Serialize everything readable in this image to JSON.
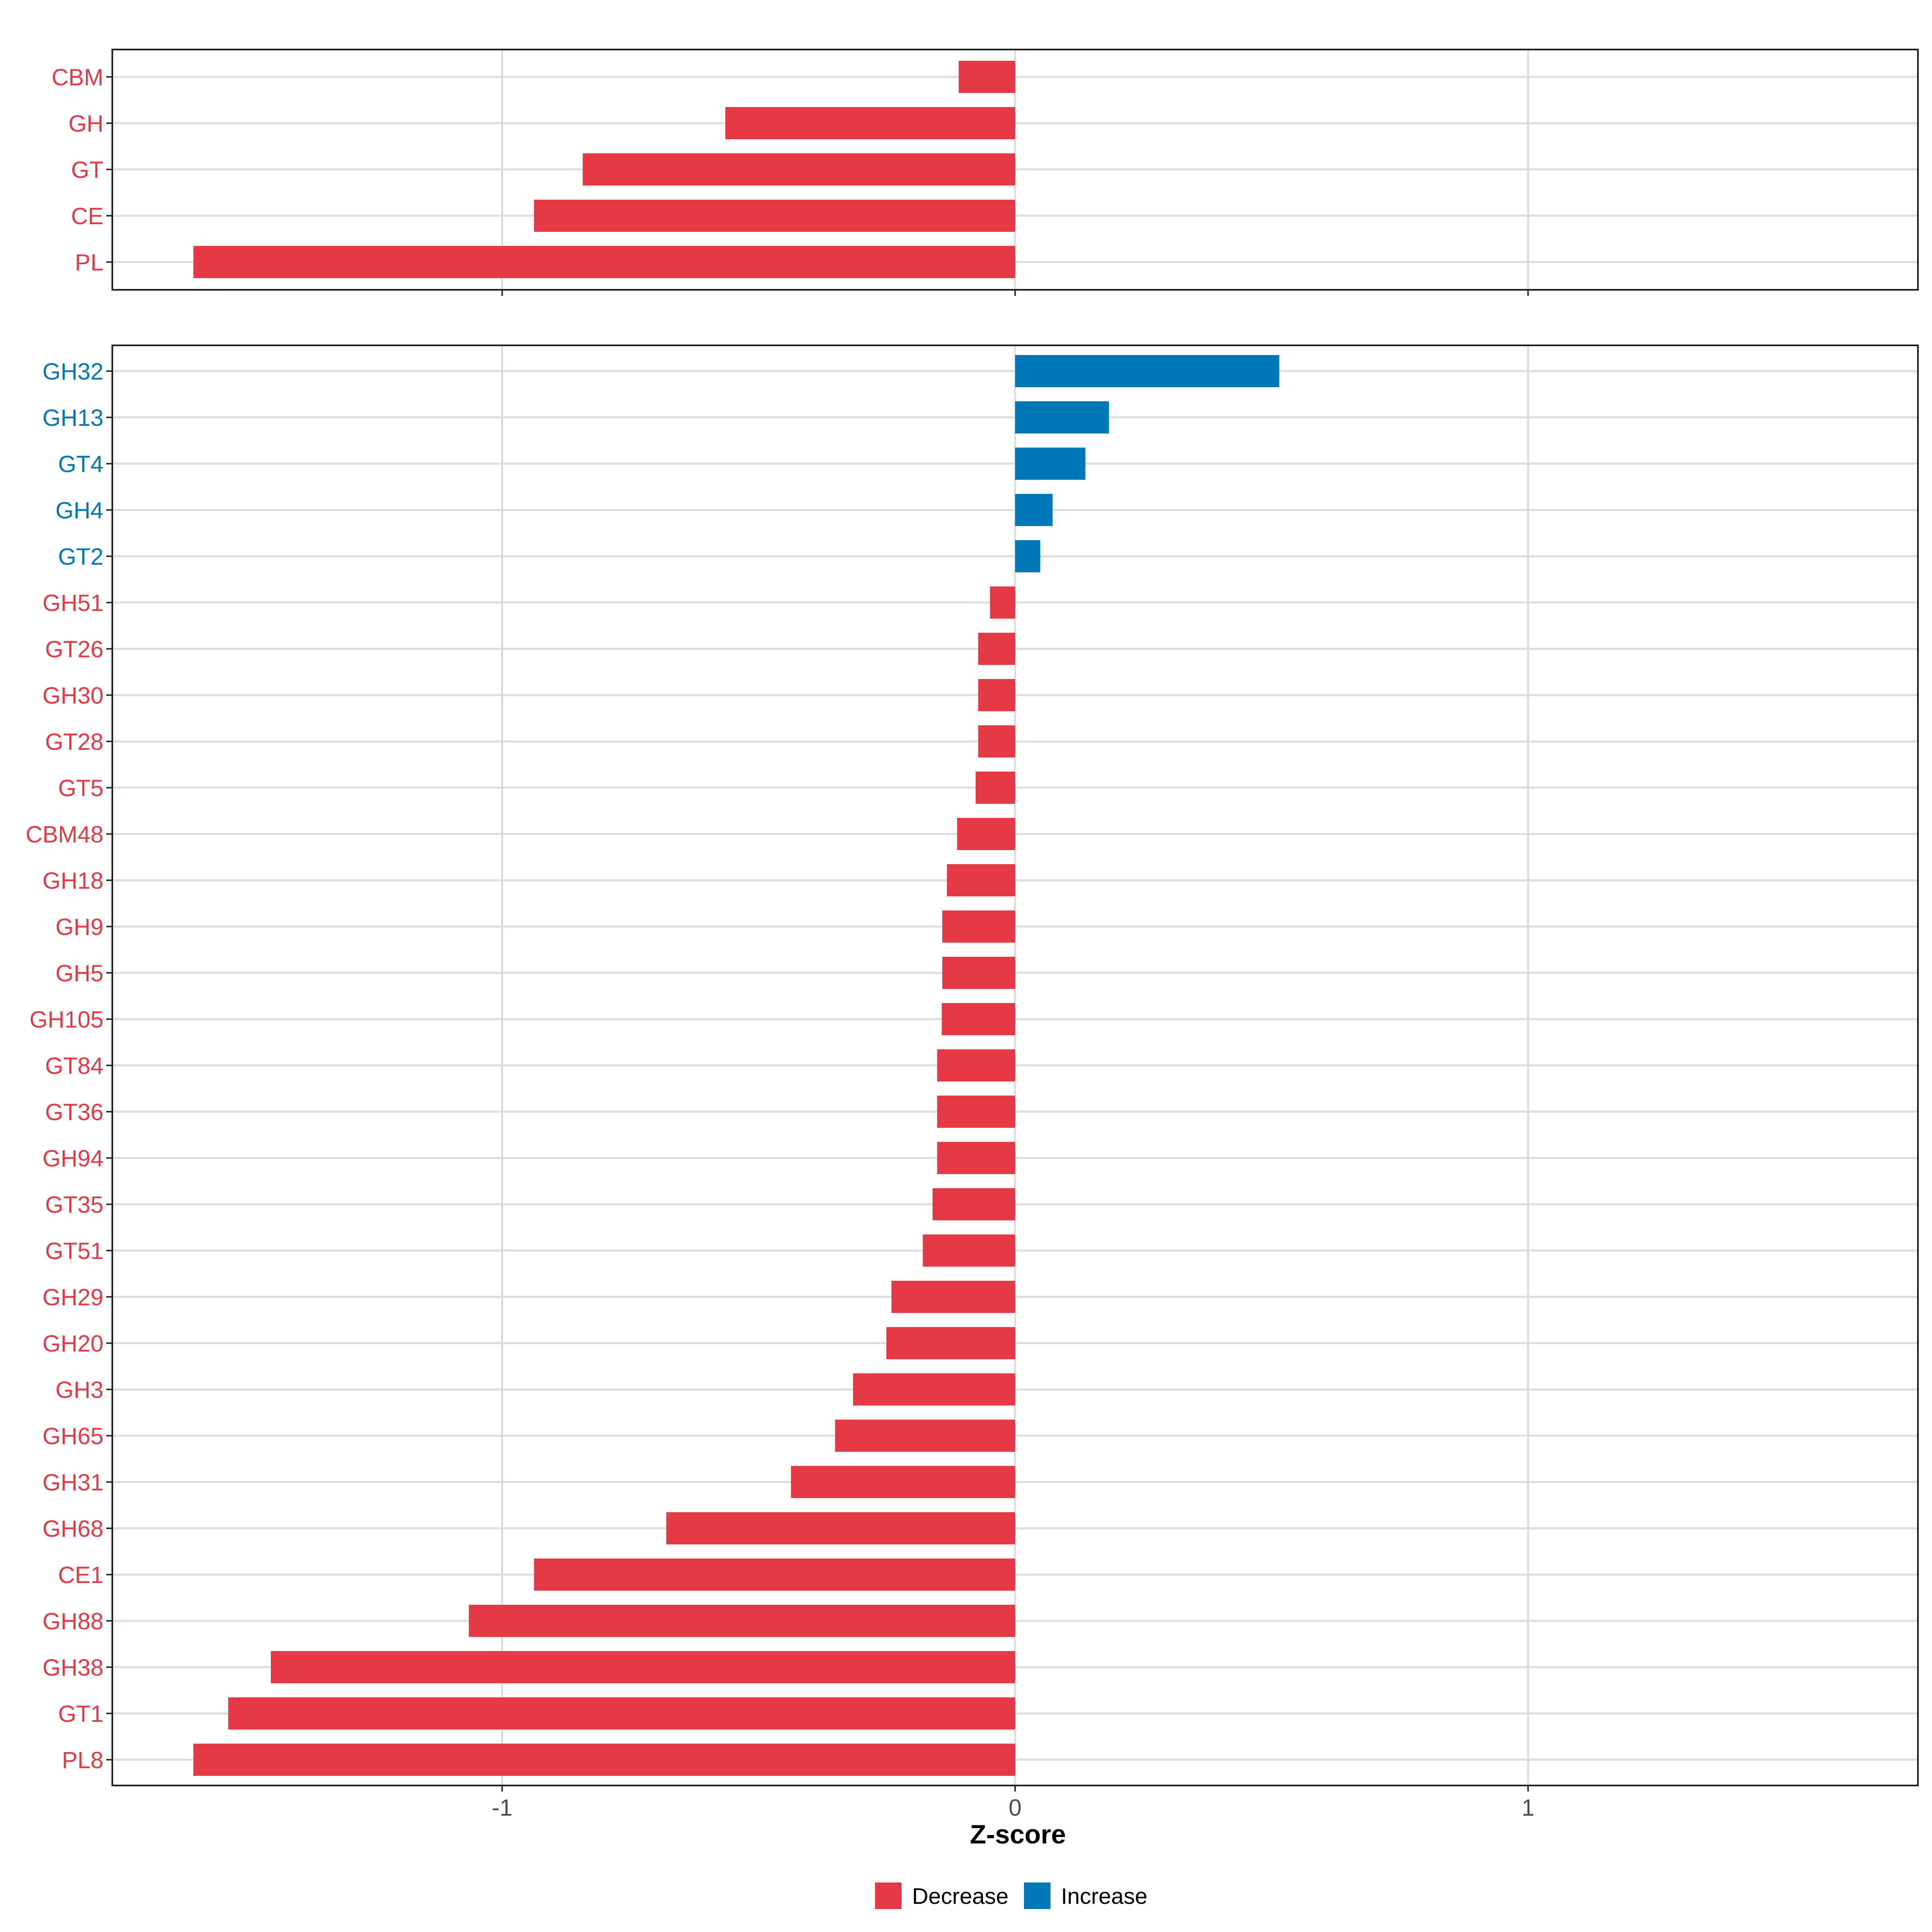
{
  "chart_data": [
    {
      "type": "bar",
      "orientation": "horizontal",
      "title": "",
      "xlabel": "",
      "ylabel": "",
      "xlim": [
        -1.76,
        1.76
      ],
      "xticks": [
        -1,
        0,
        1
      ],
      "xtick_labels": [
        "-1",
        "0",
        "1"
      ],
      "show_tick_labels": false,
      "grid": true,
      "categories": [
        "CBM",
        "GH",
        "GT",
        "CE",
        "PL"
      ],
      "values": [
        -0.11,
        -0.565,
        -0.843,
        -0.938,
        -1.602
      ],
      "direction": [
        "Decrease",
        "Decrease",
        "Decrease",
        "Decrease",
        "Decrease"
      ]
    },
    {
      "type": "bar",
      "orientation": "horizontal",
      "title": "",
      "xlabel": "Z-score",
      "ylabel": "",
      "xlim": [
        -1.76,
        1.76
      ],
      "xticks": [
        -1,
        0,
        1
      ],
      "xtick_labels": [
        "-1",
        "0",
        "1"
      ],
      "show_tick_labels": true,
      "grid": true,
      "categories": [
        "GH32",
        "GH13",
        "GT4",
        "GH4",
        "GT2",
        "GH51",
        "GT26",
        "GH30",
        "GT28",
        "GT5",
        "CBM48",
        "GH18",
        "GH9",
        "GH5",
        "GH105",
        "GT84",
        "GT36",
        "GH94",
        "GT35",
        "GT51",
        "GH29",
        "GH20",
        "GH3",
        "GH65",
        "GH31",
        "GH68",
        "CE1",
        "GH88",
        "GH38",
        "GT1",
        "PL8"
      ],
      "values": [
        0.515,
        0.183,
        0.137,
        0.073,
        0.049,
        -0.049,
        -0.072,
        -0.072,
        -0.072,
        -0.077,
        -0.113,
        -0.133,
        -0.142,
        -0.142,
        -0.143,
        -0.152,
        -0.152,
        -0.152,
        -0.161,
        -0.18,
        -0.241,
        -0.251,
        -0.316,
        -0.351,
        -0.437,
        -0.68,
        -0.938,
        -1.065,
        -1.451,
        -1.534,
        -1.602
      ],
      "direction": [
        "Increase",
        "Increase",
        "Increase",
        "Increase",
        "Increase",
        "Decrease",
        "Decrease",
        "Decrease",
        "Decrease",
        "Decrease",
        "Decrease",
        "Decrease",
        "Decrease",
        "Decrease",
        "Decrease",
        "Decrease",
        "Decrease",
        "Decrease",
        "Decrease",
        "Decrease",
        "Decrease",
        "Decrease",
        "Decrease",
        "Decrease",
        "Decrease",
        "Decrease",
        "Decrease",
        "Decrease",
        "Decrease",
        "Decrease",
        "Decrease"
      ]
    }
  ],
  "legend": {
    "placement": "bottom",
    "items": [
      {
        "label": "Decrease",
        "color": "#E63946"
      },
      {
        "label": "Increase",
        "color": "#0077B6"
      }
    ]
  },
  "colors": {
    "Decrease": "#E63946",
    "Increase": "#0077B6",
    "grid": "#DCDCDC",
    "panel_border": "#1a1a1a",
    "tick_text": "#4D4D4D",
    "axis_title": "#000000"
  }
}
